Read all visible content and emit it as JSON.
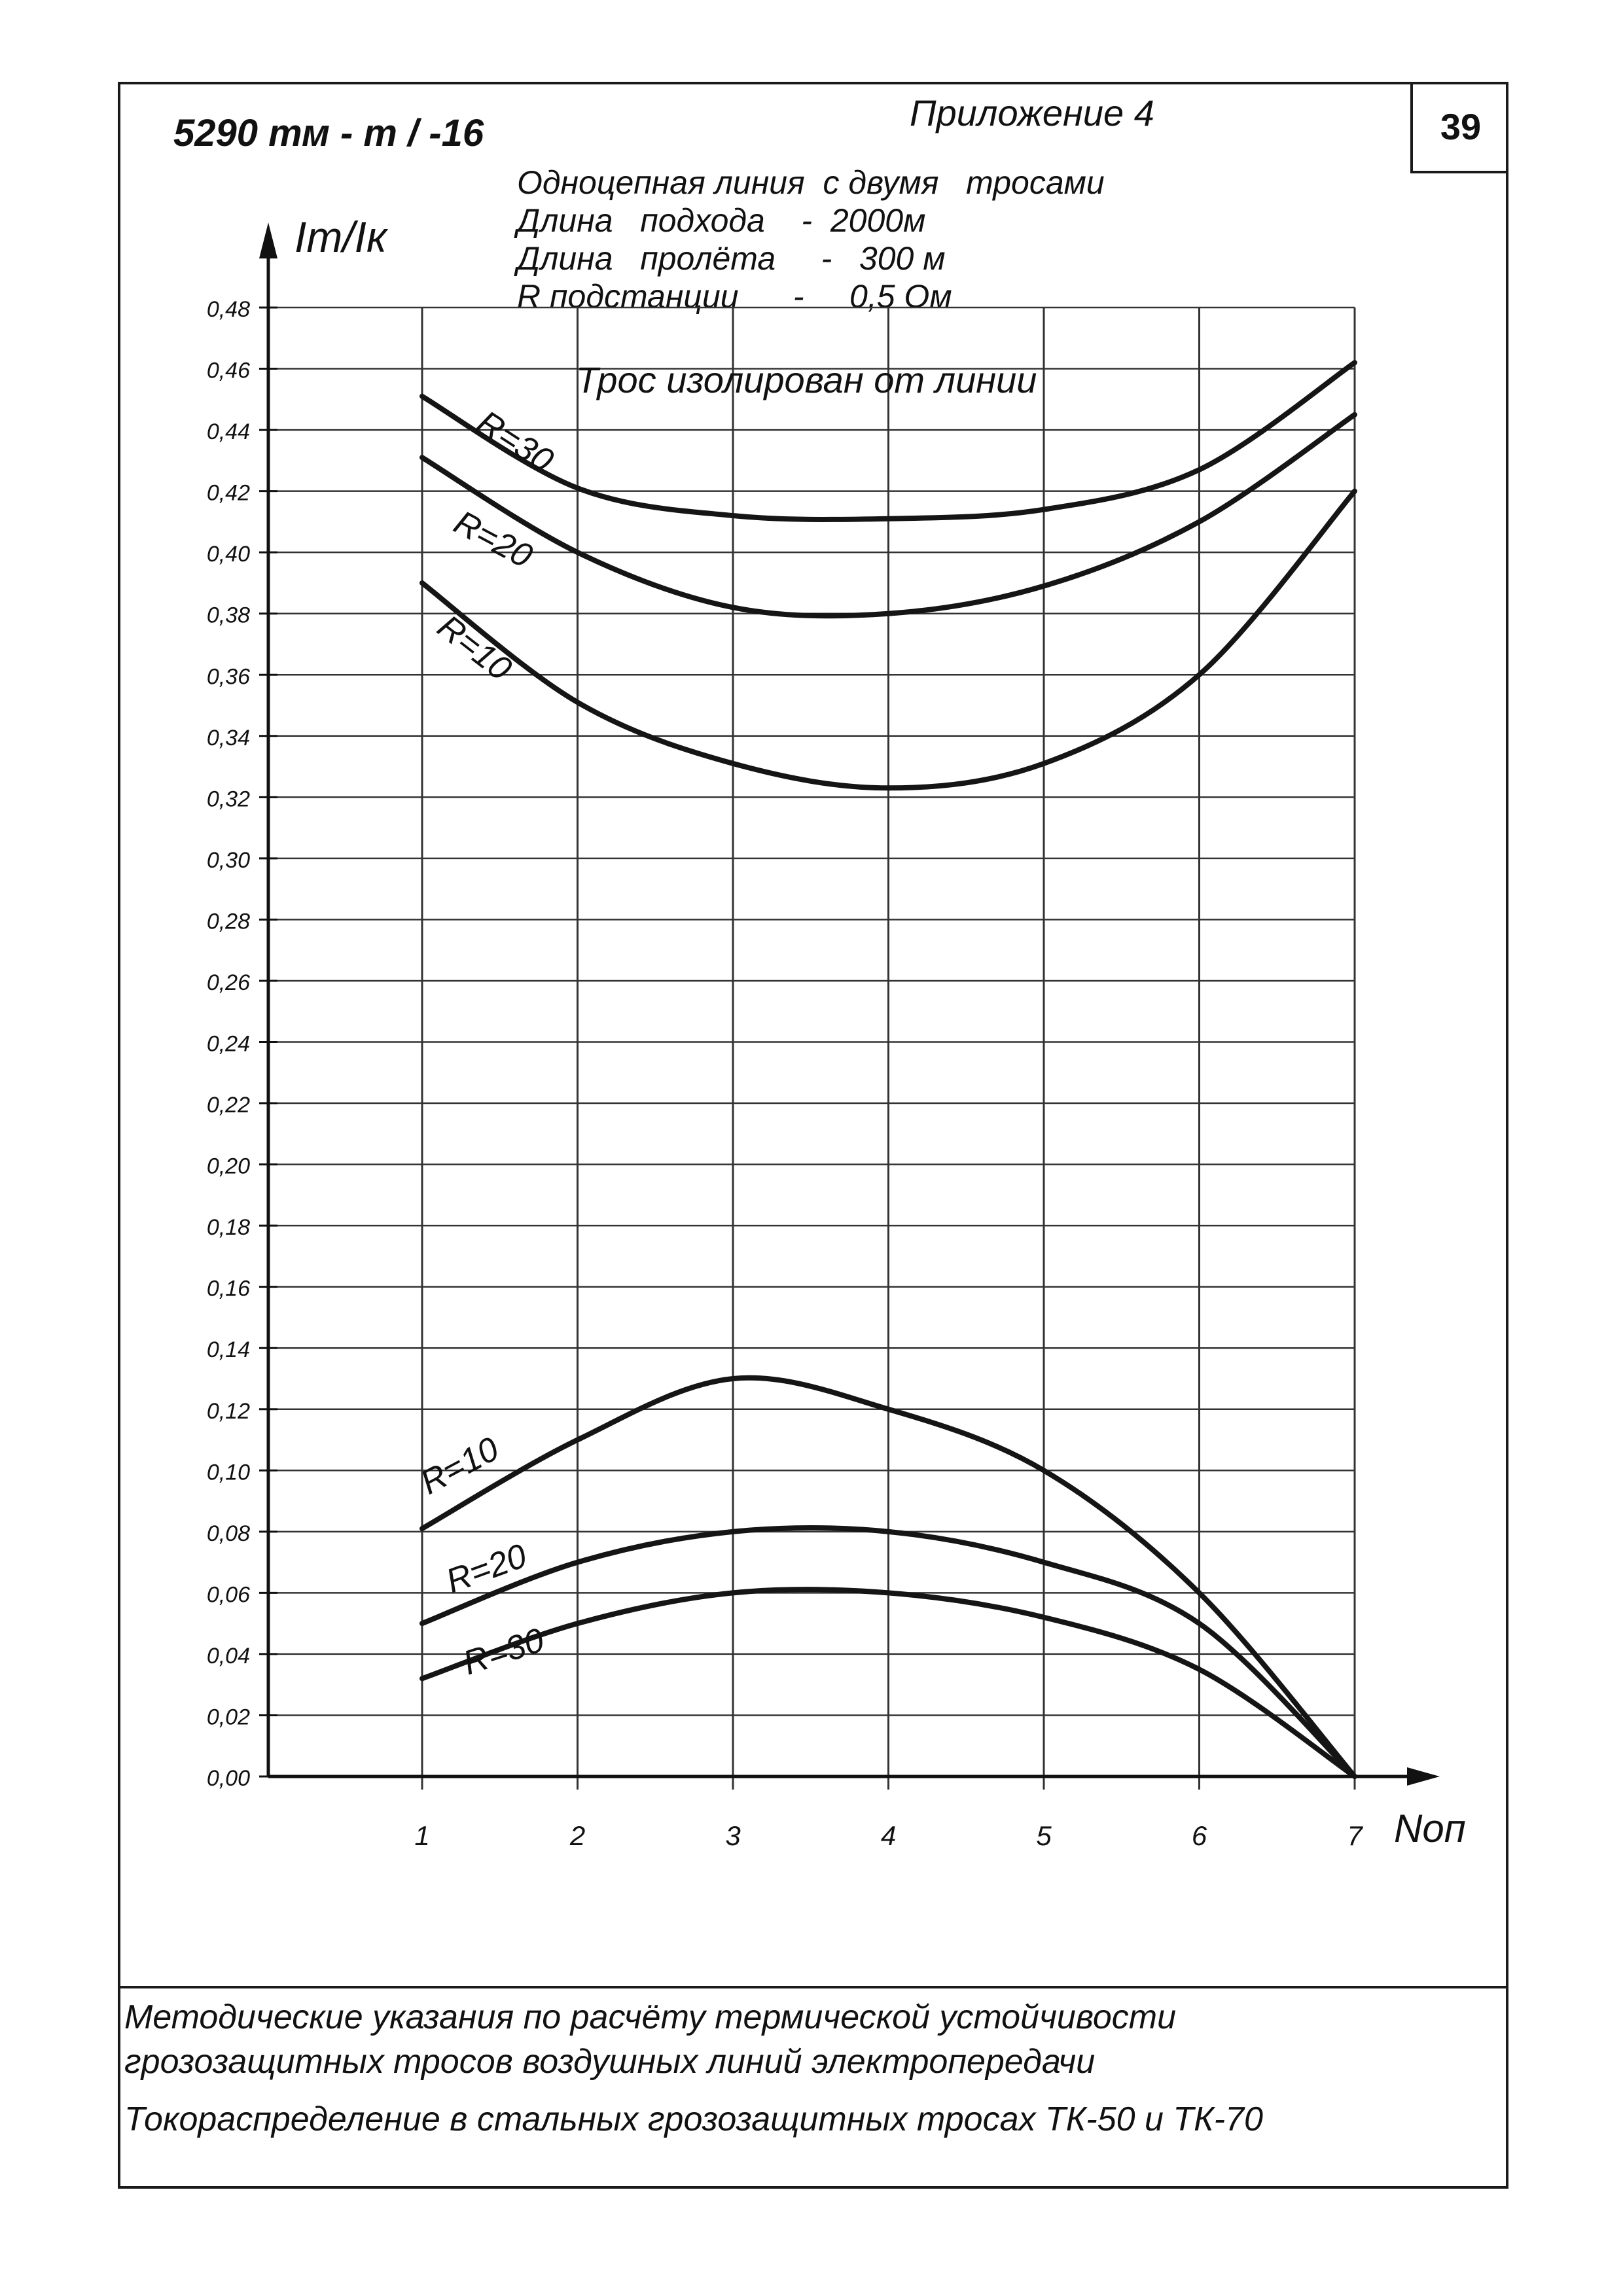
{
  "header": {
    "doc_code": "5290 тм - т / -16",
    "appendix": "Приложение 4",
    "page_number": "39"
  },
  "notes": [
    "Одноцепная линия  с двумя   тросами",
    "Длина   подхода    -  2000м",
    "Длина   пролёта     -   300 м",
    "R подстанции      -     0,5 Ом"
  ],
  "footer": {
    "line1": "Методические указания по расчёту термической устойчивости",
    "line2": "грозозащитных тросов воздушных линий электропередачи",
    "line3": "Токораспределение в стальных грозозащитных тросах ТК-50 и ТК-70"
  },
  "chart_data": {
    "type": "line",
    "ylabel": "Iт/Iк",
    "xlabel": "Nоп",
    "annotation": "Трос изолирован от линии",
    "xlim": [
      1,
      7
    ],
    "ylim": [
      0,
      0.48
    ],
    "x_ticks": [
      "1",
      "2",
      "3",
      "4",
      "5",
      "6",
      "7"
    ],
    "y_ticks": [
      "0,00",
      "0,02",
      "0,04",
      "0,06",
      "0,08",
      "0,10",
      "0,12",
      "0,14",
      "0,16",
      "0,18",
      "0,20",
      "0,22",
      "0,24",
      "0,26",
      "0,28",
      "0,30",
      "0,32",
      "0,34",
      "0,36",
      "0,38",
      "0,40",
      "0,42",
      "0,44",
      "0,46",
      "0,48"
    ],
    "series": [
      {
        "name": "R=30",
        "group": "upper",
        "x": [
          1,
          2,
          3,
          4,
          5,
          6,
          7
        ],
        "y": [
          0.451,
          0.421,
          0.412,
          0.411,
          0.414,
          0.427,
          0.462
        ]
      },
      {
        "name": "R=20",
        "group": "upper",
        "x": [
          1,
          2,
          3,
          4,
          5,
          6,
          7
        ],
        "y": [
          0.431,
          0.4,
          0.382,
          0.38,
          0.389,
          0.41,
          0.445
        ]
      },
      {
        "name": "R=10",
        "group": "upper",
        "x": [
          1,
          2,
          3,
          4,
          5,
          6,
          7
        ],
        "y": [
          0.39,
          0.351,
          0.331,
          0.323,
          0.331,
          0.36,
          0.42
        ]
      },
      {
        "name": "R=10",
        "group": "lower",
        "x": [
          1,
          2,
          3,
          4,
          5,
          6,
          7
        ],
        "y": [
          0.081,
          0.11,
          0.13,
          0.12,
          0.1,
          0.06,
          0.0
        ]
      },
      {
        "name": "R=20",
        "group": "lower",
        "x": [
          1,
          2,
          3,
          4,
          5,
          6,
          7
        ],
        "y": [
          0.05,
          0.07,
          0.08,
          0.08,
          0.07,
          0.05,
          0.0
        ]
      },
      {
        "name": "R=30",
        "group": "lower",
        "x": [
          1,
          2,
          3,
          4,
          5,
          6,
          7
        ],
        "y": [
          0.032,
          0.05,
          0.06,
          0.06,
          0.052,
          0.035,
          0.0
        ]
      }
    ],
    "series_labels": [
      "R=30",
      "R=20",
      "R=10",
      "R=10",
      "R=20",
      "R=30"
    ],
    "grid": true
  }
}
